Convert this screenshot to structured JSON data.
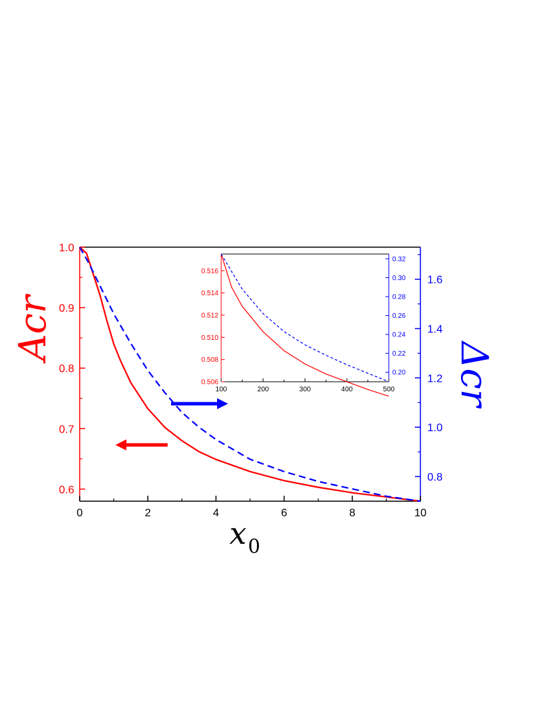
{
  "chart_data": [
    {
      "type": "line",
      "role": "main",
      "xlabel": {
        "base": "x",
        "sub": "0"
      },
      "ylabel_left": "Acr",
      "ylabel_right": "Δcr",
      "xlim": [
        0,
        10
      ],
      "ylim_left": [
        0.58,
        1.0
      ],
      "ylim_right": [
        0.7,
        1.73
      ],
      "x_ticks": [
        "0",
        "2",
        "4",
        "6",
        "8",
        "10"
      ],
      "y_left_ticks": [
        "0.6",
        "0.7",
        "0.8",
        "0.9",
        "1.0"
      ],
      "y_right_ticks": [
        "0.8",
        "1.0",
        "1.2",
        "1.4",
        "1.6"
      ],
      "series": [
        {
          "axis": "left",
          "color": "#ff0000",
          "style": "solid",
          "x": [
            0,
            0.2,
            0.4,
            0.6,
            0.8,
            1.0,
            1.2,
            1.5,
            2.0,
            2.5,
            3.0,
            3.5,
            4.0,
            5.0,
            6.0,
            7.0,
            8.0,
            9.0,
            10.0
          ],
          "y": [
            1.0,
            0.99,
            0.955,
            0.92,
            0.878,
            0.84,
            0.812,
            0.776,
            0.733,
            0.702,
            0.68,
            0.662,
            0.649,
            0.629,
            0.614,
            0.603,
            0.594,
            0.587,
            0.58
          ]
        },
        {
          "axis": "right",
          "color": "#0000ff",
          "style": "dashed",
          "x": [
            0,
            0.25,
            0.5,
            0.75,
            1.0,
            1.5,
            2.0,
            2.5,
            3.0,
            3.5,
            4.0,
            5.0,
            6.0,
            7.0,
            8.0,
            9.0,
            10.0
          ],
          "y": [
            1.73,
            1.67,
            1.6,
            1.53,
            1.46,
            1.34,
            1.23,
            1.14,
            1.06,
            1.0,
            0.95,
            0.87,
            0.82,
            0.78,
            0.75,
            0.72,
            0.7
          ]
        }
      ],
      "arrows": [
        {
          "color": "#ff0000",
          "direction": "left"
        },
        {
          "color": "#0000ff",
          "direction": "right"
        }
      ]
    },
    {
      "type": "line",
      "role": "inset",
      "xlim": [
        100,
        500
      ],
      "ylim_left": [
        0.506,
        0.5175
      ],
      "ylim_right": [
        0.19,
        0.325
      ],
      "x_ticks": [
        "100",
        "200",
        "300",
        "400",
        "500"
      ],
      "y_left_ticks": [
        "0.506",
        "0.508",
        "0.510",
        "0.512",
        "0.514",
        "0.516"
      ],
      "y_right_ticks": [
        "0.20",
        "0.22",
        "0.24",
        "0.26",
        "0.28",
        "0.30",
        "0.32"
      ],
      "series": [
        {
          "axis": "left",
          "color": "#ff0000",
          "style": "solid",
          "x": [
            100,
            125,
            150,
            200,
            250,
            300,
            350,
            400,
            450,
            500
          ],
          "y": [
            0.5175,
            0.5145,
            0.5128,
            0.5105,
            0.5088,
            0.5076,
            0.5067,
            0.506,
            0.5053,
            0.5047
          ]
        },
        {
          "axis": "right",
          "color": "#0000ff",
          "style": "dashed",
          "x": [
            100,
            150,
            200,
            250,
            300,
            350,
            400,
            450,
            500
          ],
          "y": [
            0.325,
            0.288,
            0.262,
            0.243,
            0.229,
            0.218,
            0.208,
            0.199,
            0.19
          ]
        }
      ]
    }
  ]
}
